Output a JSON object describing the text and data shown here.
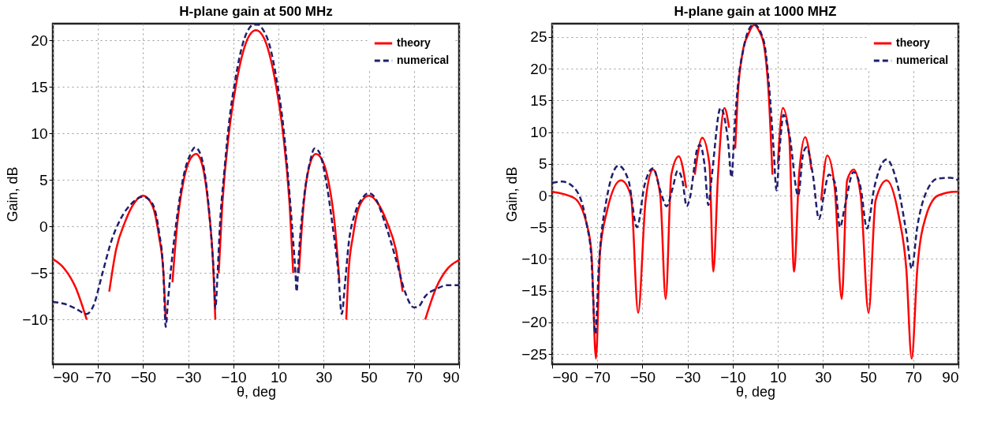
{
  "chart_data": [
    {
      "type": "line",
      "title": "H-plane gain at 500 MHz",
      "xlabel": "θ, deg",
      "ylabel": "Gain, dB",
      "xlim": [
        -90,
        90
      ],
      "xticks": [
        -90,
        -70,
        -50,
        -30,
        -10,
        10,
        30,
        50,
        70,
        90
      ],
      "ylim": [
        -14.8,
        21.8
      ],
      "yticks": [
        -10,
        -5,
        0,
        5,
        10,
        15,
        20
      ],
      "grid": true,
      "legend": "top right",
      "series": [
        {
          "name": "theory",
          "color": "#ff0000",
          "line_style": "solid",
          "x": [
            -90,
            -85,
            -80,
            -75,
            -72.4,
            -70,
            -67.2,
            -65,
            -62,
            -58,
            -54,
            -50,
            -46,
            -43,
            -41,
            -40,
            -39.6,
            -39,
            -38.3,
            -37,
            -35,
            -32,
            -29,
            -26.5,
            -24,
            -21,
            -19,
            -18,
            -17.9,
            -17.6,
            -17.4,
            -16.5,
            -15,
            -12,
            -9,
            -6,
            -3,
            0,
            3,
            6,
            9,
            12,
            15,
            16.5,
            17.4,
            17.7,
            18.2,
            19,
            21,
            24,
            26.5,
            29,
            32,
            35,
            37,
            38.3,
            39,
            39.6,
            40,
            41,
            43,
            46,
            50,
            54,
            58,
            62,
            65,
            67.2,
            70,
            72.4,
            75,
            80,
            85,
            90
          ],
          "values": [
            -3.5,
            -4.5,
            -6.5,
            -10,
            null,
            null,
            null,
            -7,
            -2.5,
            0.5,
            2.5,
            3.3,
            2.3,
            -1,
            -5,
            -10,
            null,
            null,
            null,
            -6,
            0,
            5,
            7.3,
            7.8,
            6.8,
            2,
            -4,
            -10,
            null,
            null,
            null,
            -5,
            2,
            10,
            15,
            18.5,
            20.5,
            21.1,
            20.5,
            18.5,
            15,
            10,
            2,
            -5,
            null,
            null,
            null,
            -5,
            2,
            6.8,
            7.8,
            7.3,
            5,
            0,
            -6,
            null,
            null,
            null,
            -10,
            -5,
            -1,
            2.3,
            3.3,
            2.5,
            0.5,
            -2.5,
            -7,
            null,
            null,
            null,
            -10,
            -6.5,
            -4.5,
            -3.6
          ]
        },
        {
          "name": "numerical",
          "color": "#1f1f6e",
          "line_style": "dashed",
          "x": [
            -90,
            -85,
            -80,
            -75,
            -72,
            -68,
            -64,
            -60,
            -55,
            -50,
            -46,
            -43,
            -41,
            -40,
            -39,
            -37,
            -35,
            -32,
            -29,
            -27,
            -25,
            -22,
            -20,
            -18.5,
            -18,
            -17,
            -16,
            -14,
            -12,
            -9,
            -6,
            -3,
            -1,
            1,
            3,
            6,
            9,
            12,
            14,
            16,
            17.5,
            18,
            19,
            21,
            24,
            26,
            28,
            31,
            34,
            36.5,
            38,
            39.5,
            41,
            44,
            47,
            50,
            53,
            57,
            62,
            66,
            70,
            72,
            75,
            80,
            85,
            90
          ],
          "values": [
            -8.1,
            -8.3,
            -8.8,
            -9.4,
            -8.5,
            -5,
            -1.5,
            0.8,
            2.5,
            3.2,
            2.5,
            -0.5,
            -5,
            -10.8,
            -8,
            -3,
            1,
            5.5,
            7.8,
            8.5,
            8,
            4.5,
            -0.5,
            -6,
            -8.8,
            -5,
            0,
            6,
            11,
            16,
            19.5,
            21.3,
            21.7,
            21.7,
            21.2,
            19.5,
            16,
            11,
            6,
            0,
            -5,
            -7,
            -3,
            2.5,
            7,
            8.4,
            8,
            5,
            0,
            -5,
            -9.4,
            -6,
            -2,
            1.5,
            3,
            3.6,
            3,
            0.5,
            -3.5,
            -7,
            -8.7,
            -8.6,
            -7.5,
            -6.7,
            -6.3,
            -6.3
          ]
        }
      ]
    },
    {
      "type": "line",
      "title": "H-plane gain at 1000 MHZ",
      "xlabel": "θ, deg",
      "ylabel": "Gain, dB",
      "xlim": [
        -90,
        90
      ],
      "xticks": [
        -90,
        -70,
        -50,
        -30,
        -10,
        10,
        30,
        50,
        70,
        90
      ],
      "ylim": [
        -26.6,
        27.1
      ],
      "yticks": [
        -25,
        -20,
        -15,
        -10,
        -5,
        0,
        5,
        10,
        15,
        20,
        25
      ],
      "grid": true,
      "legend": "top right",
      "series": [
        {
          "name": "theory",
          "color": "#ff0000",
          "line_style": "solid",
          "x": [
            -90,
            -80.2,
            -74.7,
            -72.6,
            -70.6,
            -68.8,
            -66,
            -59.5,
            -55.1,
            -51.9,
            -48.6,
            -45.3,
            -42.1,
            -39.7,
            -37.2,
            -33.9,
            -30.6,
            -28.8,
            -28.3,
            -27.9,
            -26.8,
            -23.5,
            -20.3,
            -18.6,
            -16.5,
            -13.7,
            -11.6,
            -9.9,
            -9.6,
            -9.3,
            -8.9,
            -7.8,
            -5.6,
            -3,
            -0.5,
            1.6,
            3.8,
            6,
            7.6,
            8.4,
            8.8,
            9.2,
            10,
            12.2,
            15,
            17.2,
            19.4,
            22.1,
            24.9,
            27,
            27.4,
            27.8,
            29.2,
            31.9,
            35.2,
            38.3,
            40.7,
            43.6,
            46.7,
            50.2,
            53.3,
            58.2,
            63.6,
            66.9,
            69.3,
            71.8,
            75.6,
            81,
            88.6,
            90
          ],
          "values": [
            0.6,
            -0.4,
            -4.5,
            -9,
            -25.7,
            -9,
            -2.9,
            2.4,
            0,
            -18.5,
            -0.8,
            4.1,
            0,
            -16.3,
            3.3,
            6.2,
            1.2,
            null,
            null,
            null,
            3.3,
            9.1,
            4.9,
            -12,
            3.3,
            13.8,
            10.7,
            null,
            null,
            null,
            7.4,
            15.6,
            22.6,
            25.5,
            26.9,
            26,
            23.8,
            15.6,
            3.3,
            null,
            null,
            null,
            5,
            13.8,
            9.4,
            -12,
            3.3,
            9.2,
            4.1,
            null,
            null,
            null,
            -0.8,
            6.3,
            1.2,
            -16.3,
            2.4,
            4.1,
            0,
            -18.5,
            -0.8,
            2.4,
            -3.3,
            -11.5,
            -25.7,
            -11.5,
            -3.3,
            0,
            0.6,
            0.6
          ]
        },
        {
          "name": "numerical",
          "color": "#1f1f6e",
          "line_style": "dashed",
          "x": [
            -90,
            -85.6,
            -80.2,
            -74.7,
            -72.6,
            -70.9,
            -69.3,
            -66,
            -60.6,
            -56.2,
            -52.4,
            -49.1,
            -45.3,
            -42.1,
            -39.3,
            -36.6,
            -34.4,
            -32.3,
            -30.4,
            -29,
            -25.7,
            -24.6,
            -22.5,
            -20.8,
            -19.2,
            -15.4,
            -14.3,
            -12.1,
            -10.5,
            -9.2,
            -7.5,
            -5.3,
            -3.2,
            -0.6,
            3.8,
            6,
            8.1,
            9.4,
            10.8,
            12.5,
            15.2,
            19,
            21.2,
            22.8,
            25.5,
            28.2,
            30.4,
            32.6,
            35.3,
            37.5,
            39.7,
            43.5,
            46.7,
            49.5,
            52.7,
            58.2,
            62.5,
            66.9,
            69.3,
            71.8,
            75.6,
            81,
            86.5,
            90
          ],
          "values": [
            2,
            2.2,
            1.2,
            -4.5,
            -9.9,
            -21.8,
            -11,
            -0.8,
            4.7,
            2.4,
            -5,
            1.6,
            4.3,
            0.8,
            -1.7,
            1.2,
            3.9,
            2.4,
            -1.7,
            -0.4,
            7.4,
            8,
            4.9,
            -1.5,
            3.3,
            13.8,
            13.2,
            8.6,
            2.9,
            10.7,
            18.1,
            23,
            25.9,
            27,
            24.3,
            17.7,
            7.4,
            0.8,
            7.4,
            12.7,
            9.4,
            0,
            6.6,
            7.6,
            3.3,
            -3.7,
            0,
            3.3,
            2,
            -5,
            -1.7,
            3.7,
            1.2,
            -5.2,
            1.2,
            5.7,
            2.4,
            -5.8,
            -11.5,
            -4.9,
            0.4,
            2.7,
            2.8,
            2.4
          ]
        }
      ]
    }
  ]
}
